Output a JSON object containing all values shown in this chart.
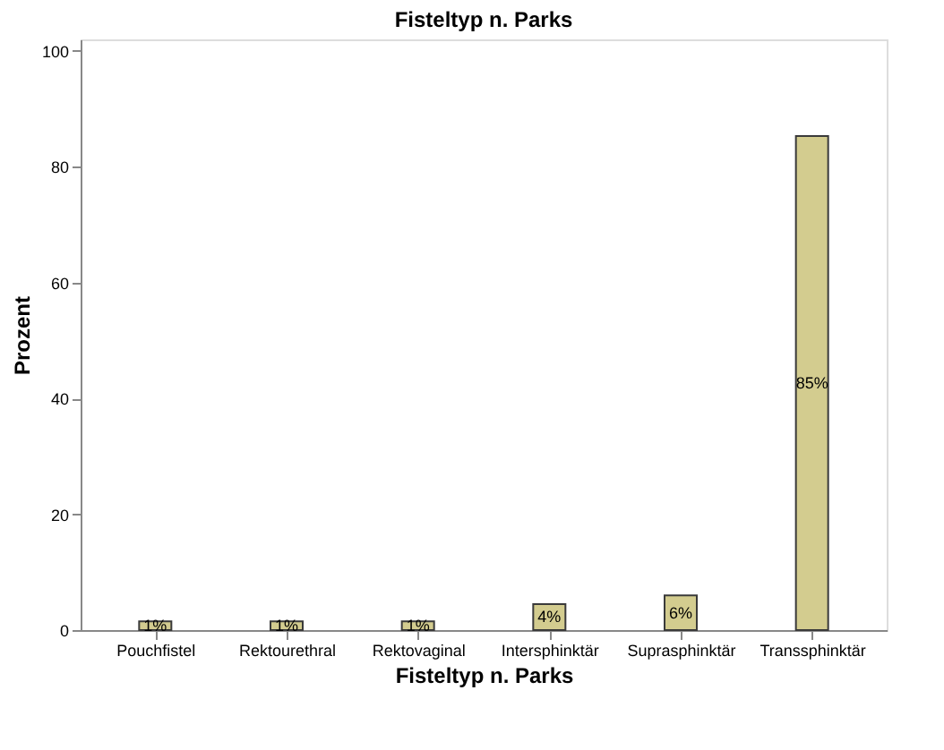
{
  "chart_data": {
    "type": "bar",
    "title": "Fisteltyp n. Parks",
    "xlabel": "Fisteltyp n. Parks",
    "ylabel": "Prozent",
    "categories": [
      "Pouchfistel",
      "Rektourethral",
      "Rektovaginal",
      "Intersphinktär",
      "Suprasphinktär",
      "Transsphinktär"
    ],
    "values": [
      1.5,
      1.5,
      1.5,
      4.5,
      6,
      85.3
    ],
    "value_labels": [
      "1%",
      "1%",
      "1%",
      "4%",
      "6%",
      "85%"
    ],
    "color": "#d3cc8f",
    "ylim": [
      0,
      102
    ],
    "yticks": [
      0,
      20,
      40,
      60,
      80,
      100
    ],
    "grid": false
  }
}
